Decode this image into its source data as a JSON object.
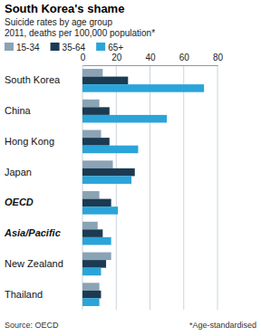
{
  "chart_data": {
    "type": "bar",
    "orientation": "horizontal",
    "title": "South Korea's shame",
    "subtitle": [
      "Suicide rates by age group",
      "2011, deaths per 100,000 population*"
    ],
    "categories": [
      "South Korea",
      "China",
      "Hong Kong",
      "Japan",
      "OECD",
      "Asia/Pacific",
      "New Zealand",
      "Thailand"
    ],
    "series": [
      {
        "name": "15-34",
        "color": "#8aa3b5",
        "values": [
          12,
          10,
          11,
          18,
          10,
          9,
          17,
          10
        ]
      },
      {
        "name": "35-64",
        "color": "#1b3b52",
        "values": [
          27,
          16,
          16,
          31,
          17,
          12,
          14,
          11
        ]
      },
      {
        "name": "65+",
        "color": "#2aa4d9",
        "values": [
          72,
          50,
          33,
          29,
          21,
          17,
          11,
          10
        ]
      }
    ],
    "xlim": [
      0,
      80
    ],
    "xticks": [
      0,
      20,
      40,
      60,
      80
    ],
    "grid": true,
    "legend": "top left",
    "source": "Source: OECD",
    "note": "*Age-standardised"
  }
}
